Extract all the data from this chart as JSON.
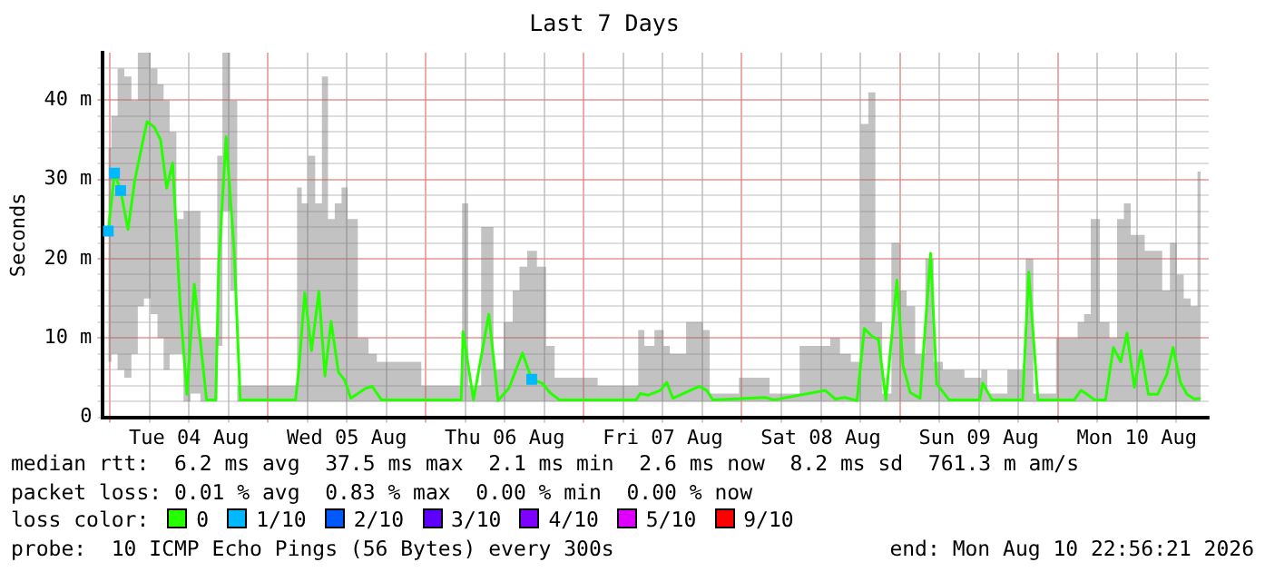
{
  "chart_data": {
    "type": "line",
    "title": "Last 7 Days",
    "ylabel": "Seconds",
    "xlim": [
      "2026-08-03T22:56",
      "2026-08-10T22:56"
    ],
    "xticks": [
      {
        "value": "2026-08-04T00:00",
        "label": null
      },
      {
        "value": "2026-08-04T06:00",
        "label": null
      },
      {
        "value": "2026-08-04T12:00",
        "label": "Tue 04 Aug"
      },
      {
        "value": "2026-08-04T18:00",
        "label": null
      },
      {
        "value": "2026-08-05T00:00",
        "label": null
      },
      {
        "value": "2026-08-05T06:00",
        "label": null
      },
      {
        "value": "2026-08-05T12:00",
        "label": "Wed 05 Aug"
      },
      {
        "value": "2026-08-05T18:00",
        "label": null
      },
      {
        "value": "2026-08-06T00:00",
        "label": null
      },
      {
        "value": "2026-08-06T06:00",
        "label": null
      },
      {
        "value": "2026-08-06T12:00",
        "label": "Thu 06 Aug"
      },
      {
        "value": "2026-08-06T18:00",
        "label": null
      },
      {
        "value": "2026-08-07T00:00",
        "label": null
      },
      {
        "value": "2026-08-07T06:00",
        "label": null
      },
      {
        "value": "2026-08-07T12:00",
        "label": "Fri 07 Aug"
      },
      {
        "value": "2026-08-07T18:00",
        "label": null
      },
      {
        "value": "2026-08-08T00:00",
        "label": null
      },
      {
        "value": "2026-08-08T06:00",
        "label": null
      },
      {
        "value": "2026-08-08T12:00",
        "label": "Sat 08 Aug"
      },
      {
        "value": "2026-08-08T18:00",
        "label": null
      },
      {
        "value": "2026-08-09T00:00",
        "label": null
      },
      {
        "value": "2026-08-09T06:00",
        "label": null
      },
      {
        "value": "2026-08-09T12:00",
        "label": "Sun 09 Aug"
      },
      {
        "value": "2026-08-09T18:00",
        "label": null
      },
      {
        "value": "2026-08-10T00:00",
        "label": null
      },
      {
        "value": "2026-08-10T06:00",
        "label": null
      },
      {
        "value": "2026-08-10T12:00",
        "label": "Mon 10 Aug"
      },
      {
        "value": "2026-08-10T18:00",
        "label": null
      }
    ],
    "ylim": [
      0,
      46
    ],
    "yticks": [
      0,
      {
        "value": 2,
        "label": null
      },
      {
        "value": 4,
        "label": null
      },
      {
        "value": 6,
        "label": null
      },
      {
        "value": 8,
        "label": null
      },
      {
        "value": 10,
        "label": "10 m"
      },
      {
        "value": 12,
        "label": null
      },
      {
        "value": 14,
        "label": null
      },
      {
        "value": 16,
        "label": null
      },
      {
        "value": 18,
        "label": null
      },
      {
        "value": 20,
        "label": "20 m"
      },
      {
        "value": 22,
        "label": null
      },
      {
        "value": 24,
        "label": null
      },
      {
        "value": 26,
        "label": null
      },
      {
        "value": 28,
        "label": null
      },
      {
        "value": 30,
        "label": "30 m"
      },
      {
        "value": 32,
        "label": null
      },
      {
        "value": 34,
        "label": null
      },
      {
        "value": 36,
        "label": null
      },
      {
        "value": 38,
        "label": null
      },
      {
        "value": 40,
        "label": "40 m"
      },
      {
        "value": 42,
        "label": null
      },
      {
        "value": 44,
        "label": null
      }
    ],
    "grid": true,
    "legend": "bottom",
    "legend_title": "loss color:",
    "annotations": [
      "median rtt:  6.2 ms avg  37.5 ms max  2.1 ms min  2.6 ms now  8.2 ms sd  761.3 m am/s",
      "packet loss: 0.01 % avg  0.83 % max  0.00 % min  0.00 % now",
      "probe:  10 ICMP Echo Pings (56 Bytes) every 300s",
      "end: Mon Aug 10 22:56:21 2026"
    ],
    "series": [
      {
        "name": "0",
        "color": "#26ff00",
        "x": [
          "2026-08-03T23:45",
          "2026-08-04T00:42",
          "2026-08-04T01:38",
          "2026-08-04T02:45",
          "2026-08-04T03:47",
          "2026-08-04T04:42",
          "2026-08-04T05:38",
          "2026-08-04T06:45",
          "2026-08-04T07:42",
          "2026-08-04T08:37",
          "2026-08-04T09:32",
          "2026-08-04T10:40",
          "2026-08-04T11:42",
          "2026-08-04T12:49",
          "2026-08-04T14:41",
          "2026-08-04T16:05",
          "2026-08-04T16:32",
          "2026-08-04T17:39",
          "2026-08-04T18:53",
          "2026-08-04T19:48",
          "2026-08-05T04:12",
          "2026-08-05T04:40",
          "2026-08-05T05:36",
          "2026-08-05T06:38",
          "2026-08-05T07:45",
          "2026-08-05T08:40",
          "2026-08-05T09:36",
          "2026-08-05T10:43",
          "2026-08-05T11:40",
          "2026-08-05T12:35",
          "2026-08-05T14:44",
          "2026-08-05T15:51",
          "2026-08-05T17:15",
          "2026-08-06T05:22",
          "2026-08-06T05:39",
          "2026-08-06T07:14",
          "2026-08-06T09:34",
          "2026-08-06T10:58",
          "2026-08-06T12:38",
          "2026-08-06T13:45",
          "2026-08-06T14:41",
          "2026-08-06T16:05",
          "2026-08-06T17:40",
          "2026-08-06T18:52",
          "2026-08-06T20:16",
          "2026-08-07T07:56",
          "2026-08-07T08:35",
          "2026-08-07T09:48",
          "2026-08-07T11:39",
          "2026-08-07T12:36",
          "2026-08-07T13:32",
          "2026-08-07T17:32",
          "2026-08-07T18:39",
          "2026-08-07T19:36",
          "2026-08-08T03:31",
          "2026-08-08T04:55",
          "2026-08-08T12:39",
          "2026-08-08T14:13",
          "2026-08-08T15:37",
          "2026-08-08T17:30",
          "2026-08-08T18:37",
          "2026-08-08T19:49",
          "2026-08-08T20:46",
          "2026-08-08T21:53",
          "2026-08-08T23:34",
          "2026-08-09T00:29",
          "2026-08-09T01:36",
          "2026-08-09T03:05",
          "2026-08-09T04:41",
          "2026-08-09T05:36",
          "2026-08-09T07:29",
          "2026-08-09T12:09",
          "2026-08-09T12:36",
          "2026-08-09T14:00",
          "2026-08-09T18:40",
          "2026-08-09T19:35",
          "2026-08-09T20:59",
          "2026-08-10T02:30",
          "2026-08-10T03:32",
          "2026-08-10T04:27",
          "2026-08-10T05:34",
          "2026-08-10T07:15",
          "2026-08-10T08:27",
          "2026-08-10T09:34",
          "2026-08-10T10:31",
          "2026-08-10T11:38",
          "2026-08-10T12:39",
          "2026-08-10T13:46",
          "2026-08-10T15:10",
          "2026-08-10T16:34",
          "2026-08-10T17:31",
          "2026-08-10T18:38",
          "2026-08-10T19:38",
          "2026-08-10T20:45",
          "2026-08-10T21:42"
        ],
        "values": [
          23.5,
          30.8,
          28.6,
          23.7,
          29.9,
          33.6,
          37.3,
          36.6,
          35,
          28.9,
          32.1,
          14.2,
          2.9,
          16.8,
          2.2,
          2.2,
          19.3,
          35.4,
          20.9,
          2.2,
          2.2,
          5.7,
          15.7,
          8.4,
          15.9,
          5.2,
          12.1,
          5.7,
          4.7,
          2.4,
          3.6,
          3.9,
          2.2,
          2.2,
          10.8,
          2.2,
          13,
          2.1,
          3.7,
          6.1,
          8.1,
          4.8,
          4.3,
          3.1,
          2.2,
          2.2,
          3,
          2.8,
          3.4,
          4.4,
          2.4,
          3.9,
          3.4,
          2.2,
          2.5,
          2.2,
          3.4,
          2.3,
          2.5,
          2.1,
          11.2,
          10.2,
          9.8,
          2.2,
          17.3,
          6.5,
          3.1,
          2.4,
          20.7,
          4.2,
          2.2,
          2.2,
          4.3,
          2.2,
          2.2,
          18.3,
          2.2,
          2.2,
          3.4,
          2.9,
          2.2,
          2.2,
          8.8,
          7,
          10.6,
          3.8,
          8.4,
          2.9,
          2.9,
          5.4,
          8.8,
          4.4,
          2.9,
          2.3,
          2.4
        ],
        "lower": [
          7,
          8,
          6,
          5,
          8,
          14,
          15,
          13,
          10,
          6,
          8,
          8,
          2,
          3,
          2,
          2,
          9,
          26,
          16,
          2,
          2,
          2,
          2,
          2,
          2,
          2,
          2,
          2,
          2,
          2,
          2,
          2,
          2,
          2,
          2,
          2,
          2,
          2,
          2,
          2,
          2,
          2,
          2,
          2,
          2,
          2,
          2,
          2,
          2,
          2,
          2,
          2,
          2,
          2,
          2,
          2,
          2,
          2,
          2,
          2,
          2,
          2,
          2,
          2,
          2,
          2,
          2,
          2,
          2,
          2,
          2,
          2,
          2,
          2,
          2,
          2,
          2,
          2,
          2,
          2,
          2,
          2,
          2,
          2,
          2,
          2,
          2,
          2,
          2,
          2,
          2,
          2,
          2,
          2,
          2
        ],
        "upper": [
          34,
          38,
          44,
          43,
          40,
          46,
          46,
          44,
          42,
          40,
          36,
          25,
          26,
          26,
          10,
          10,
          33,
          46,
          40,
          4,
          4,
          29,
          27,
          33,
          27,
          43,
          25,
          27,
          29,
          25,
          10,
          8,
          7,
          4,
          27,
          4,
          24,
          6,
          12,
          16,
          19,
          21,
          19,
          9,
          5,
          4,
          11,
          9,
          11,
          9,
          8,
          12,
          11,
          3,
          5,
          3,
          9,
          10,
          8,
          7,
          37,
          41,
          12,
          3,
          22,
          16,
          14,
          8,
          20,
          7,
          6,
          5,
          6,
          3,
          6,
          20,
          3,
          10,
          12,
          13,
          25,
          12,
          10,
          25,
          27,
          23,
          23,
          21,
          21,
          16,
          22,
          18,
          15,
          14,
          31
        ]
      },
      {
        "name": "1/10",
        "type": "scatter",
        "color": "#00b8ff",
        "marker": "square",
        "x": [
          "2026-08-03T23:45",
          "2026-08-04T00:42",
          "2026-08-04T01:38",
          "2026-08-06T16:05"
        ],
        "values": [
          23.5,
          30.8,
          28.6,
          4.8
        ]
      },
      {
        "name": "2/10",
        "type": "scatter",
        "color": "#0059ff",
        "marker": "square"
      },
      {
        "name": "3/10",
        "type": "scatter",
        "color": "#5e00ff",
        "marker": "square"
      },
      {
        "name": "4/10",
        "type": "scatter",
        "color": "#7e00ff",
        "marker": "square"
      },
      {
        "name": "5/10",
        "type": "scatter",
        "color": "#dd00ff",
        "marker": "square"
      },
      {
        "name": "9/10",
        "type": "scatter",
        "color": "#ff0000",
        "marker": "square"
      }
    ]
  }
}
